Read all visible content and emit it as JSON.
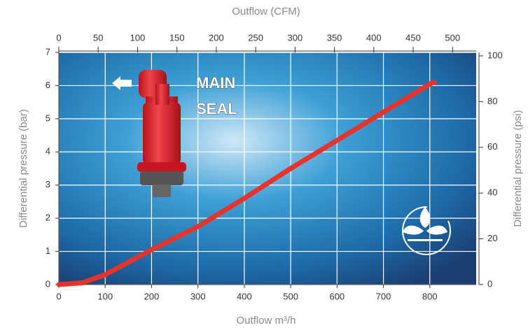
{
  "chart_data": {
    "type": "line",
    "title": "Outflow (CFM)",
    "xlabel": "Outflow m³/h",
    "ylabel": "Differential pressure (bar)",
    "y2label": "Differential pressure (psi)",
    "annotations": [
      "MAIN",
      "SEAL"
    ],
    "x": [
      0,
      50,
      100,
      200,
      300,
      400,
      500,
      600,
      700,
      800,
      810
    ],
    "values": [
      0,
      0.05,
      0.3,
      1.05,
      1.75,
      2.6,
      3.5,
      4.35,
      5.2,
      6.05,
      6.1
    ],
    "color": "#e8332a",
    "xlim": [
      0,
      900
    ],
    "xticks": [
      0,
      100,
      200,
      300,
      400,
      500,
      600,
      700,
      800
    ],
    "x2lim": [
      0,
      530
    ],
    "x2ticks": [
      0,
      50,
      100,
      150,
      200,
      250,
      300,
      350,
      400,
      450,
      500
    ],
    "ylim": [
      0,
      7
    ],
    "yticks": [
      0,
      1,
      2,
      3,
      4,
      5,
      6,
      7
    ],
    "y2lim": [
      0,
      101.5
    ],
    "y2ticks": [
      0,
      20,
      40,
      60,
      80,
      100
    ],
    "grid": true
  }
}
